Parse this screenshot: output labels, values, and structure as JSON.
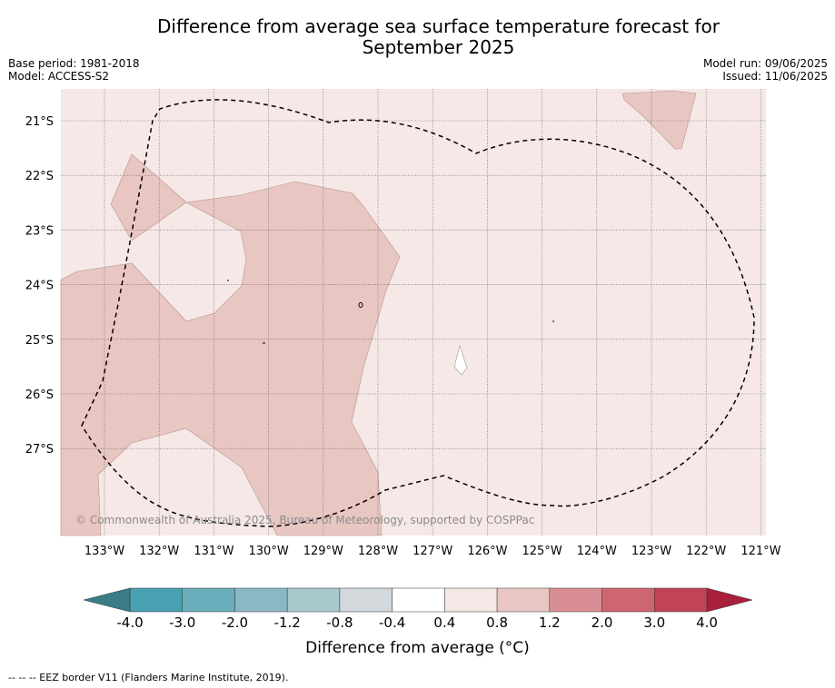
{
  "title_line1": "Difference from average sea surface temperature forecast for",
  "title_line2": "September 2025",
  "base_period": "Base period: 1981-2018",
  "model": "Model: ACCESS-S2",
  "model_run": "Model run: 09/06/2025",
  "issued": "Issued: 11/06/2025",
  "copyright": "© Commonwealth of Australia 2025, Bureau of Meteorology, supported by COSPPac",
  "lat_labels": [
    "21°S",
    "22°S",
    "23°S",
    "24°S",
    "25°S",
    "26°S",
    "27°S"
  ],
  "lon_labels": [
    "133°W",
    "132°W",
    "131°W",
    "130°W",
    "129°W",
    "128°W",
    "127°W",
    "126°W",
    "125°W",
    "124°W",
    "123°W",
    "122°W",
    "121°W"
  ],
  "colorbar": {
    "ticks": [
      "-4.0",
      "-3.0",
      "-2.0",
      "-1.2",
      "-0.8",
      "-0.4",
      "0.4",
      "0.8",
      "1.2",
      "2.0",
      "3.0",
      "4.0"
    ],
    "colors": [
      "#48a0b2",
      "#6aaebc",
      "#8ab8c4",
      "#a9c8ce",
      "#d2d8db",
      "#ffffff",
      "#f5e8e6",
      "#e8c6c2",
      "#d98e96",
      "#ce6670",
      "#c14455"
    ],
    "under_color": "#3a7c85",
    "over_color": "#a8203a",
    "label": "Difference from average (°C)"
  },
  "footnote": "-- -- -- EEZ border V11 (Flanders Marine Institute, 2019)."
}
